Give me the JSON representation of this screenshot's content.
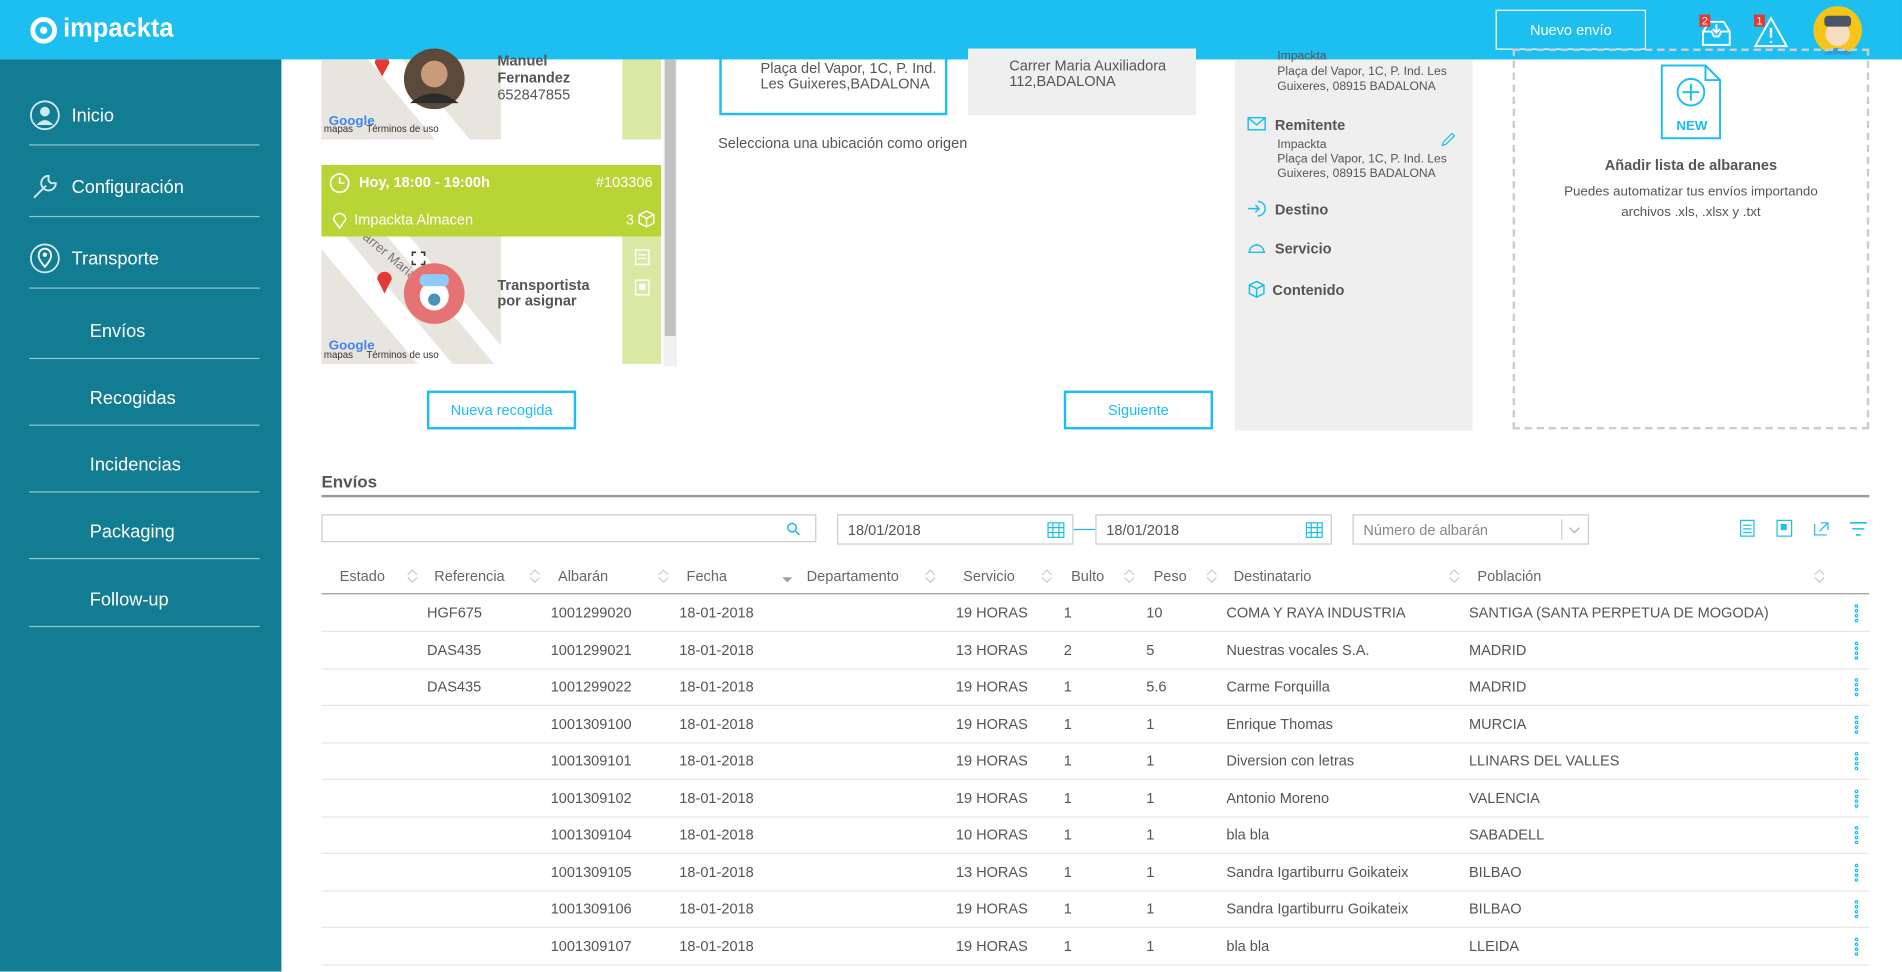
{
  "header": {
    "logo": "impackta",
    "new_button": "Nuevo envío",
    "inbox_badge": "2",
    "alert_badge": "1"
  },
  "sidebar": {
    "items": [
      "Inicio",
      "Configuración",
      "Transporte"
    ],
    "subitems": [
      "Envíos",
      "Recogidas",
      "Incidencias",
      "Packaging",
      "Follow-up"
    ]
  },
  "pickups": [
    {
      "name": "Manuel Fernandez",
      "phone": "652847855"
    },
    {
      "time": "Hoy, 18:00 - 19:00h",
      "id": "#103306",
      "location": "Impackta Almacen",
      "count": "3",
      "driver": "Transportista por asignar"
    }
  ],
  "map": {
    "street": "Carrer Maria Auxilia",
    "google": "Google",
    "maps": "mapas",
    "terms": "Términos de uso"
  },
  "addresses": [
    "Plaça del Vapor, 1C, P. Ind. Les Guixeres,BADALONA",
    "Carrer Maria Auxiliadora 112,BADALONA"
  ],
  "address_hint": "Selecciona una ubicación como origen",
  "buttons": {
    "new_pickup": "Nueva recogida",
    "next": "Siguiente"
  },
  "summary": {
    "origin_name": "Impackta",
    "origin_address": "Plaça del Vapor, 1C, P. Ind. Les Guixeres, 08915 BADALONA",
    "sender_label": "Remitente",
    "sender_name": "Impackta",
    "sender_address": "Plaça del Vapor, 1C, P. Ind. Les Guixeres, 08915 BADALONA",
    "steps": [
      "Destino",
      "Servicio",
      "Contenido"
    ]
  },
  "import": {
    "badge": "NEW",
    "title": "Añadir lista de albaranes",
    "text": "Puedes automatizar tus envíos importando archivos .xls, .xlsx y .txt"
  },
  "shipments": {
    "title": "Envíos",
    "date_from": "18/01/2018",
    "date_to": "18/01/2018",
    "albaran_placeholder": "Número de albarán",
    "columns": [
      "Estado",
      "Referencia",
      "Albarán",
      "Fecha",
      "Departamento",
      "Servicio",
      "Bulto",
      "Peso",
      "Destinatario",
      "Población"
    ],
    "rows": [
      [
        null,
        "HGF675",
        "1001299020",
        "18-01-2018",
        null,
        "19 HORAS",
        "1",
        "10",
        "COMA Y RAYA INDUSTRIA",
        "SANTIGA (SANTA PERPETUA DE MOGODA)"
      ],
      [
        null,
        "DAS435",
        "1001299021",
        "18-01-2018",
        null,
        "13 HORAS",
        "2",
        "5",
        "Nuestras vocales S.A.",
        "MADRID"
      ],
      [
        null,
        "DAS435",
        "1001299022",
        "18-01-2018",
        null,
        "19 HORAS",
        "1",
        "5.6",
        "Carme Forquilla",
        "MADRID"
      ],
      [
        null,
        null,
        "1001309100",
        "18-01-2018",
        null,
        "19 HORAS",
        "1",
        "1",
        "Enrique Thomas",
        "MURCIA"
      ],
      [
        null,
        null,
        "1001309101",
        "18-01-2018",
        null,
        "19 HORAS",
        "1",
        "1",
        "Diversion con letras",
        "LLINARS DEL VALLES"
      ],
      [
        null,
        null,
        "1001309102",
        "18-01-2018",
        null,
        "19 HORAS",
        "1",
        "1",
        "Antonio Moreno",
        "VALENCIA"
      ],
      [
        null,
        null,
        "1001309104",
        "18-01-2018",
        null,
        "10 HORAS",
        "1",
        "1",
        "bla bla",
        "SABADELL"
      ],
      [
        null,
        null,
        "1001309105",
        "18-01-2018",
        null,
        "13 HORAS",
        "1",
        "1",
        "Sandra Igartiburru Goikateix",
        "BILBAO"
      ],
      [
        null,
        null,
        "1001309106",
        "18-01-2018",
        null,
        "19 HORAS",
        "1",
        "1",
        "Sandra Igartiburru Goikateix",
        "BILBAO"
      ],
      [
        null,
        null,
        "1001309107",
        "18-01-2018",
        null,
        "19 HORAS",
        "1",
        "1",
        "bla bla",
        "LLEIDA"
      ]
    ]
  }
}
